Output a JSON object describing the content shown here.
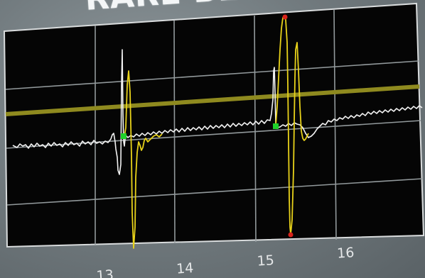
{
  "header": {
    "title": "RARE BLO"
  },
  "x_axis": {
    "ticks": [
      "13",
      "14",
      "15",
      "16"
    ]
  },
  "colors": {
    "background": "#6f777b",
    "screen": "#050505",
    "grid": "#9aa1a4",
    "border": "#d9dcdd",
    "white_trace": "#f2f2f2",
    "yellow_trace": "#e8d21a",
    "threshold_line": "#8f8a1f",
    "marker_green": "#1fd12a",
    "marker_red": "#d8231c"
  },
  "legend": {
    "threshold": "threshold-line",
    "markers": [
      "green-marker",
      "green-marker"
    ],
    "peaks": [
      "red-peak-marker",
      "red-peak-marker"
    ]
  }
}
